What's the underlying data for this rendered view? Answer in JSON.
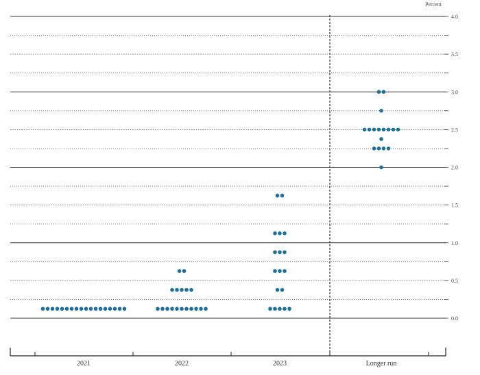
{
  "chart_data": {
    "type": "scatter",
    "unit_label": "Percent",
    "ylim": [
      0.0,
      4.0
    ],
    "y_ticks": [
      "0.0",
      "0.5",
      "1.0",
      "1.5",
      "2.0",
      "2.5",
      "3.0",
      "3.5",
      "4.0"
    ],
    "categories": [
      "2021",
      "2022",
      "2023",
      "Longer run"
    ],
    "grid": true,
    "colors": {
      "dot": "#1f6f99",
      "major_grid": "#333333",
      "minor_grid": "#555555"
    },
    "series": [
      {
        "category": "2021",
        "points": [
          {
            "y": 0.125,
            "count": 18
          }
        ]
      },
      {
        "category": "2022",
        "points": [
          {
            "y": 0.125,
            "count": 11
          },
          {
            "y": 0.375,
            "count": 5
          },
          {
            "y": 0.625,
            "count": 2
          }
        ]
      },
      {
        "category": "2023",
        "points": [
          {
            "y": 0.125,
            "count": 5
          },
          {
            "y": 0.375,
            "count": 2
          },
          {
            "y": 0.625,
            "count": 3
          },
          {
            "y": 0.875,
            "count": 3
          },
          {
            "y": 1.125,
            "count": 3
          },
          {
            "y": 1.625,
            "count": 2
          }
        ]
      },
      {
        "category": "Longer run",
        "points": [
          {
            "y": 2.0,
            "count": 1
          },
          {
            "y": 2.25,
            "count": 4
          },
          {
            "y": 2.375,
            "count": 1
          },
          {
            "y": 2.5,
            "count": 8
          },
          {
            "y": 2.75,
            "count": 1
          },
          {
            "y": 3.0,
            "count": 2
          }
        ]
      }
    ]
  }
}
